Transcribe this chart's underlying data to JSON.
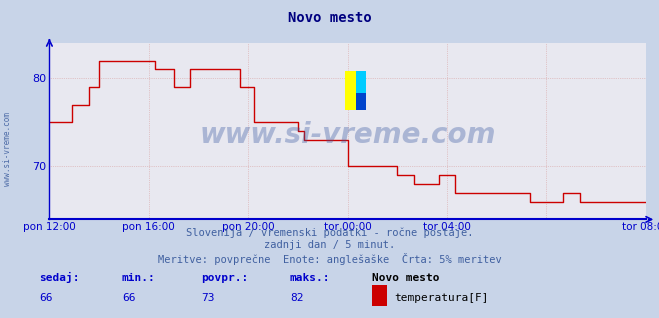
{
  "title": "Novo mesto",
  "bg_color": "#c8d4e8",
  "plot_bg_color": "#e8e8f0",
  "line_color": "#cc0000",
  "grid_color": "#d0b8b8",
  "axis_color": "#0000cc",
  "text_color": "#000080",
  "subtitle_color": "#4060a0",
  "watermark": "www.si-vreme.com",
  "watermark_color": "#3050a0",
  "footer_line1": "Slovenija / vremenski podatki - ročne postaje.",
  "footer_line2": "zadnji dan / 5 minut.",
  "footer_line3": "Meritve: povprečne  Enote: anglešaške  Črta: 5% meritev",
  "sedaj_label": "sedaj:",
  "min_label": "min.:",
  "povpr_label": "povpr.:",
  "maks_label": "maks.:",
  "station_label": "Novo mesto",
  "series_label": "temperatura[F]",
  "sedaj_val": 66,
  "min_val": 66,
  "povpr_val": 73,
  "maks_val": 82,
  "legend_color": "#cc0000",
  "ylim_min": 64,
  "ylim_max": 84,
  "yticks": [
    70,
    80
  ],
  "xlim_min": 0,
  "xlim_max": 288,
  "x_tick_positions": [
    0,
    48,
    96,
    144,
    192,
    240,
    288
  ],
  "x_tick_labels": [
    "pon 12:00",
    "pon 16:00",
    "pon 20:00",
    "tor 00:00",
    "tor 04:00",
    "",
    "tor 08:00"
  ],
  "time_series_x": [
    0,
    1,
    2,
    3,
    4,
    5,
    6,
    7,
    8,
    9,
    10,
    11,
    12,
    13,
    14,
    15,
    16,
    17,
    18,
    19,
    20,
    21,
    22,
    23,
    24,
    25,
    26,
    27,
    28,
    29,
    30,
    31,
    32,
    33,
    34,
    35,
    36,
    37,
    38,
    39,
    40,
    41,
    42,
    43,
    44,
    45,
    46,
    47,
    48,
    49,
    50,
    51,
    52,
    53,
    54,
    55,
    56,
    57,
    58,
    59,
    60,
    61,
    62,
    63,
    64,
    65,
    66,
    67,
    68,
    69,
    70,
    71,
    72,
    73,
    74,
    75,
    76,
    77,
    78,
    79,
    80,
    81,
    82,
    83,
    84,
    85,
    86,
    87,
    88,
    89,
    90,
    91,
    92,
    93,
    94,
    95,
    96,
    97,
    98,
    99,
    100,
    101,
    102,
    103,
    104,
    105,
    106,
    107,
    108,
    109,
    110,
    111,
    112,
    113,
    114,
    115,
    116,
    117,
    118,
    119,
    120,
    121,
    122,
    123,
    124,
    125,
    126,
    127,
    128,
    129,
    130,
    131,
    132,
    133,
    134,
    135,
    136,
    137,
    138,
    139,
    140,
    141,
    142,
    143,
    144,
    145,
    146,
    147,
    148,
    149,
    150,
    151,
    152,
    153,
    154,
    155,
    156,
    157,
    158,
    159,
    160,
    161,
    162,
    163,
    164,
    165,
    166,
    167,
    168,
    169,
    170,
    171,
    172,
    173,
    174,
    175,
    176,
    177,
    178,
    179,
    180,
    181,
    182,
    183,
    184,
    185,
    186,
    187,
    188,
    189,
    190,
    191,
    192,
    193,
    194,
    195,
    196,
    197,
    198,
    199,
    200,
    201,
    202,
    203,
    204,
    205,
    206,
    207,
    208,
    209,
    210,
    211,
    212,
    213,
    214,
    215,
    216,
    217,
    218,
    219,
    220,
    221,
    222,
    223,
    224,
    225,
    226,
    227,
    228,
    229,
    230,
    231,
    232,
    233,
    234,
    235,
    236,
    237,
    238,
    239,
    240,
    241,
    242,
    243,
    244,
    245,
    246,
    247,
    248,
    249,
    250,
    251,
    252,
    253,
    254,
    255,
    256,
    257,
    258,
    259,
    260,
    261,
    262,
    263,
    264,
    265,
    266,
    267,
    268,
    269,
    270,
    271,
    272,
    273,
    274,
    275,
    276,
    277,
    278,
    279,
    280,
    281,
    282,
    283,
    284,
    285,
    286,
    287,
    288
  ],
  "time_series_y": [
    75,
    75,
    75,
    75,
    75,
    75,
    75,
    75,
    75,
    75,
    75,
    77,
    77,
    77,
    77,
    77,
    77,
    77,
    77,
    79,
    79,
    79,
    79,
    79,
    82,
    82,
    82,
    82,
    82,
    82,
    82,
    82,
    82,
    82,
    82,
    82,
    82,
    82,
    82,
    82,
    82,
    82,
    82,
    82,
    82,
    82,
    82,
    82,
    82,
    82,
    82,
    81,
    81,
    81,
    81,
    81,
    81,
    81,
    81,
    81,
    79,
    79,
    79,
    79,
    79,
    79,
    79,
    79,
    81,
    81,
    81,
    81,
    81,
    81,
    81,
    81,
    81,
    81,
    81,
    81,
    81,
    81,
    81,
    81,
    81,
    81,
    81,
    81,
    81,
    81,
    81,
    81,
    79,
    79,
    79,
    79,
    79,
    79,
    79,
    75,
    75,
    75,
    75,
    75,
    75,
    75,
    75,
    75,
    75,
    75,
    75,
    75,
    75,
    75,
    75,
    75,
    75,
    75,
    75,
    75,
    74,
    74,
    74,
    73,
    73,
    73,
    73,
    73,
    73,
    73,
    73,
    73,
    73,
    73,
    73,
    73,
    73,
    73,
    73,
    73,
    73,
    73,
    73,
    73,
    70,
    70,
    70,
    70,
    70,
    70,
    70,
    70,
    70,
    70,
    70,
    70,
    70,
    70,
    70,
    70,
    70,
    70,
    70,
    70,
    70,
    70,
    70,
    70,
    69,
    69,
    69,
    69,
    69,
    69,
    69,
    69,
    68,
    68,
    68,
    68,
    68,
    68,
    68,
    68,
    68,
    68,
    68,
    68,
    69,
    69,
    69,
    69,
    69,
    69,
    69,
    69,
    67,
    67,
    67,
    67,
    67,
    67,
    67,
    67,
    67,
    67,
    67,
    67,
    67,
    67,
    67,
    67,
    67,
    67,
    67,
    67,
    67,
    67,
    67,
    67,
    67,
    67,
    67,
    67,
    67,
    67,
    67,
    67,
    67,
    67,
    67,
    67,
    66,
    66,
    66,
    66,
    66,
    66,
    66,
    66,
    66,
    66,
    66,
    66,
    66,
    66,
    66,
    66,
    67,
    67,
    67,
    67,
    67,
    67,
    67,
    67,
    66,
    66,
    66,
    66,
    66,
    66,
    66,
    66,
    66,
    66,
    66,
    66,
    66,
    66,
    66,
    66,
    66,
    66,
    66,
    66,
    66,
    66,
    66,
    66,
    66,
    66,
    66,
    66,
    66,
    66,
    66,
    66,
    66
  ]
}
